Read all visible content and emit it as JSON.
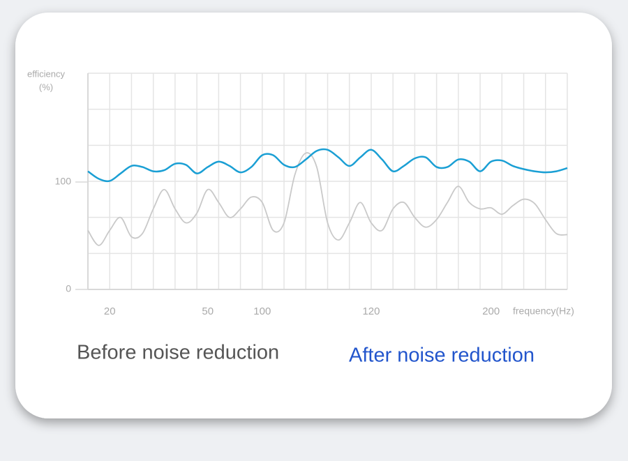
{
  "chart_data": {
    "type": "line",
    "ylabel": [
      "efficiency",
      "(%)"
    ],
    "xlabel": "frequency(Hz)",
    "categories": [
      null,
      null,
      "20",
      null,
      null,
      null,
      null,
      null,
      null,
      null,
      null,
      "50",
      null,
      null,
      null,
      null,
      "100",
      null,
      null,
      null,
      null,
      null,
      null,
      null,
      null,
      null,
      "120",
      null,
      null,
      null,
      null,
      null,
      null,
      null,
      null,
      null,
      null,
      "200",
      null,
      null,
      null,
      null,
      null,
      null,
      null
    ],
    "ylim": [
      0,
      200
    ],
    "yticks": [
      0,
      100
    ],
    "grid": true,
    "series": [
      {
        "name": "Before noise reduction",
        "color": "#c9c9c9",
        "values": [
          55,
          41,
          55,
          67,
          49,
          52,
          75,
          93,
          75,
          62,
          71,
          93,
          81,
          67,
          75,
          86,
          81,
          55,
          62,
          107,
          127,
          114,
          62,
          46,
          62,
          81,
          62,
          55,
          75,
          81,
          67,
          58,
          65,
          81,
          96,
          81,
          75,
          76,
          70,
          78,
          84,
          80,
          65,
          52,
          51
        ]
      },
      {
        "name": "After noise reduction",
        "color": "#1a9fd4",
        "values": [
          110,
          103,
          101,
          108,
          115,
          114,
          110,
          111,
          117,
          116,
          108,
          114,
          119,
          115,
          109,
          114,
          125,
          125,
          116,
          114,
          121,
          129,
          130,
          123,
          115,
          123,
          130,
          121,
          110,
          115,
          122,
          123,
          114,
          114,
          121,
          119,
          110,
          119,
          120,
          115,
          112,
          110,
          109,
          110,
          113
        ]
      }
    ]
  }
}
